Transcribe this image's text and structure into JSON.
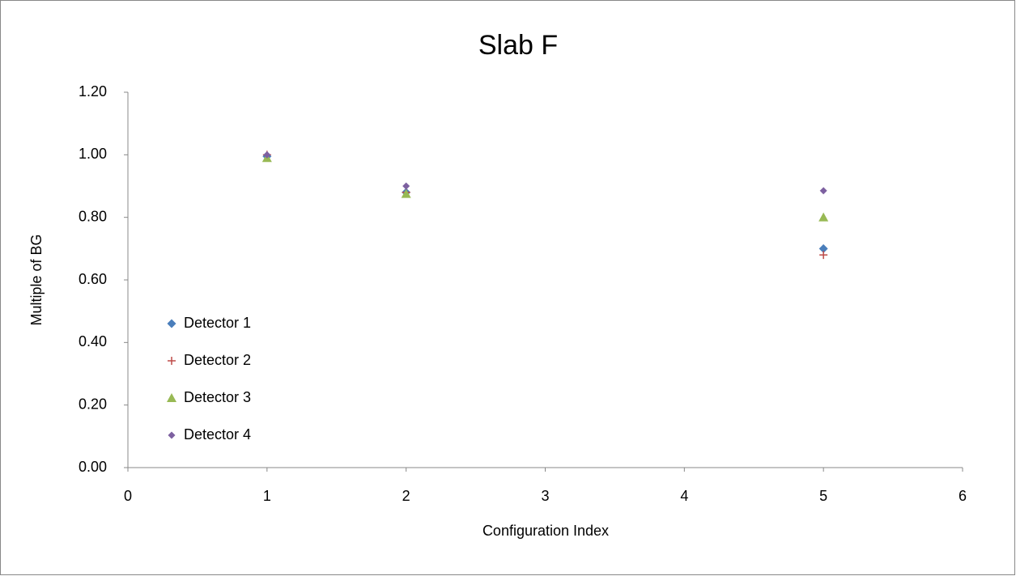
{
  "chart_data": {
    "type": "scatter",
    "title": "Slab F",
    "x_label": "Configuration Index",
    "y_label": "Multiple of BG",
    "x": [
      1,
      2,
      5
    ],
    "series": [
      {
        "name": "Detector 1",
        "color": "#4a7ebb",
        "marker": "diamond",
        "values": [
          0.995,
          0.88,
          0.7
        ]
      },
      {
        "name": "Detector 2",
        "color": "#be4b48",
        "marker": "plus",
        "values": [
          1.0,
          0.88,
          0.68
        ]
      },
      {
        "name": "Detector 3",
        "color": "#98b954",
        "marker": "triangle",
        "values": [
          0.99,
          0.875,
          0.8
        ]
      },
      {
        "name": "Detector 4",
        "color": "#7d60a0",
        "marker": "small-diamond",
        "values": [
          1.0,
          0.9,
          0.885
        ]
      }
    ],
    "xlim": [
      0,
      6
    ],
    "xticks": [
      0,
      1,
      2,
      3,
      4,
      5,
      6
    ],
    "ylim": [
      0,
      1.2
    ],
    "yticks": [
      {
        "value": 0,
        "label": "0.00"
      },
      {
        "value": 0.2,
        "label": "0.20"
      },
      {
        "value": 0.4,
        "label": "0.40"
      },
      {
        "value": 0.6,
        "label": "0.60"
      },
      {
        "value": 0.8,
        "label": "0.80"
      },
      {
        "value": 1.0,
        "label": "1.00"
      },
      {
        "value": 1.2,
        "label": "1.20"
      }
    ],
    "grid": false,
    "legend": "left"
  }
}
